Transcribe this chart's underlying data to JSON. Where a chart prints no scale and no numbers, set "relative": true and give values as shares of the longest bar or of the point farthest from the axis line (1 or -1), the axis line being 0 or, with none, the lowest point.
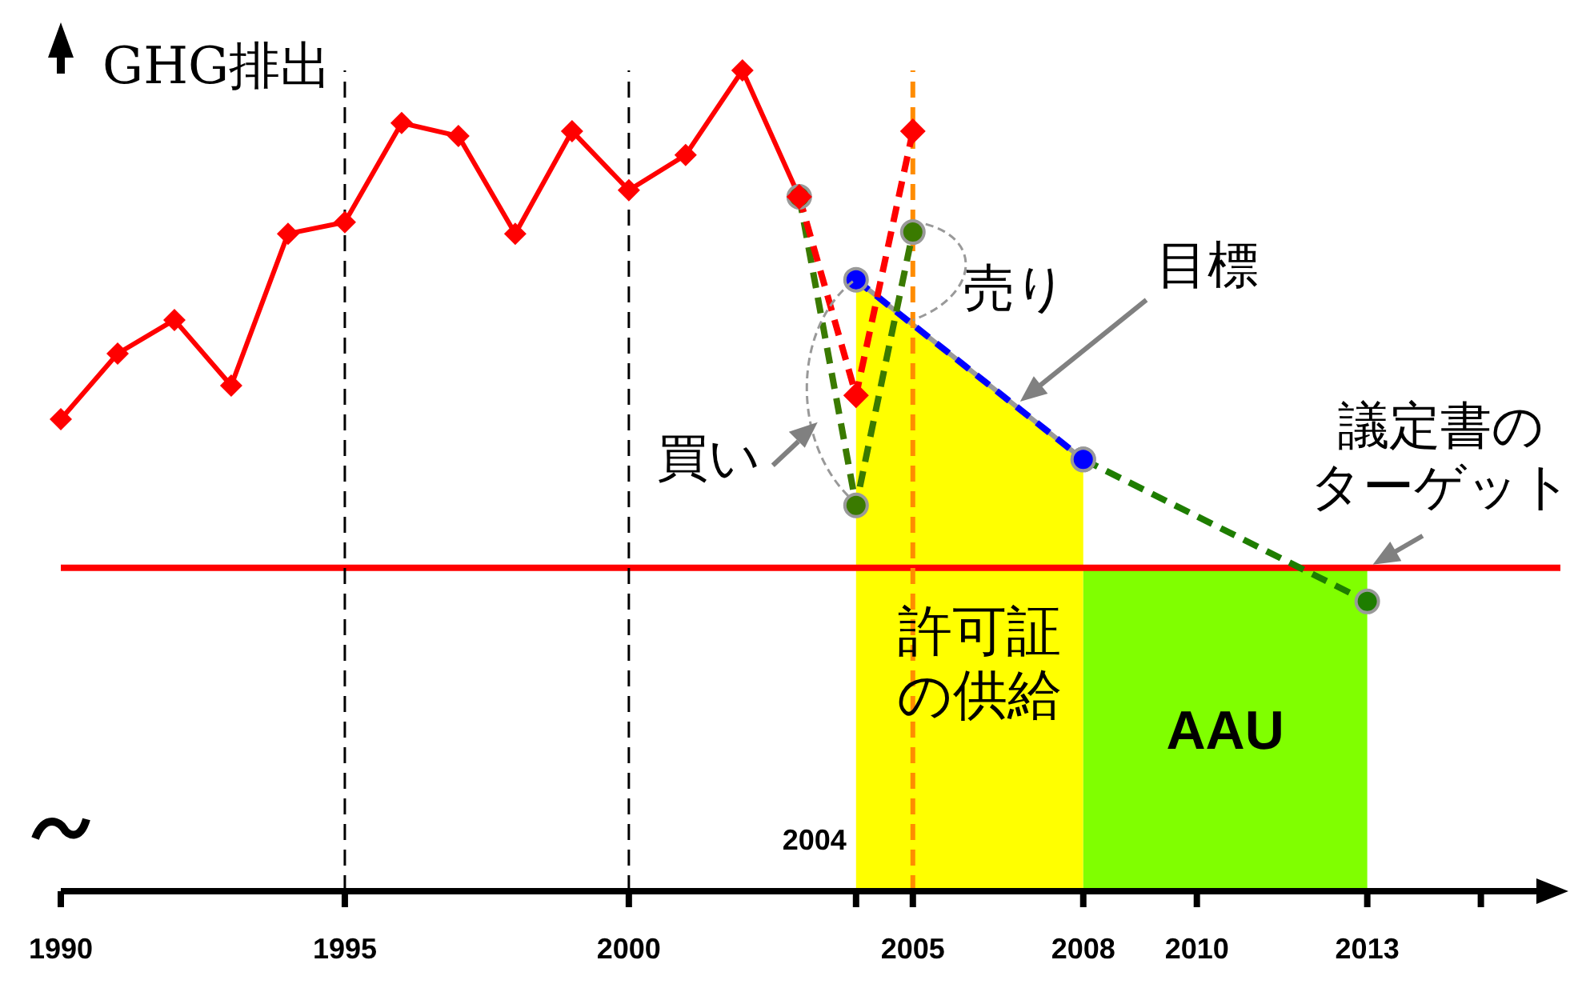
{
  "chart_data": {
    "type": "line",
    "relative": true,
    "ylabel": "GHG排出",
    "xlim": [
      1990,
      2016.4
    ],
    "xticks": [
      1990,
      1995,
      2000,
      {
        "value": 2004,
        "label": null
      },
      2005,
      2008,
      2010,
      2013,
      {
        "value": 2015,
        "label": null
      }
    ],
    "series": [
      {
        "color": "#ff0000",
        "marker": "diamond",
        "x": [
          1990,
          1991,
          1992,
          1993,
          1994,
          1995,
          1996,
          1997,
          1998,
          1999,
          2000,
          2001,
          2002,
          2003
        ],
        "values": [
          0.575,
          0.655,
          0.696,
          0.616,
          0.801,
          0.815,
          0.936,
          0.92,
          0.801,
          0.926,
          0.854,
          0.897,
          1,
          0.846
        ]
      },
      {
        "color": "#ff0000",
        "marker": "diamond",
        "line_style": "dashed",
        "x": [
          2003,
          2004,
          2005
        ],
        "values": [
          0.846,
          0.604,
          0.926
        ]
      },
      {
        "type": "area",
        "name": "許可証の供給",
        "color": "#ffff00",
        "x": [
          2004,
          2008
        ],
        "values": [
          0.745,
          0.526
        ]
      },
      {
        "type": "area",
        "name": "AAU",
        "color": "#80ff00",
        "x": [
          2008,
          2013
        ],
        "values": [
          0.394,
          0.394
        ]
      },
      {
        "color": "#3a7a00",
        "marker": "circle",
        "line_style": "dashed",
        "x": [
          2003,
          2004,
          2005
        ],
        "values": [
          0.846,
          0.47,
          0.803
        ]
      },
      {
        "color": "#0000ff",
        "marker": "circle",
        "line_style": "dashed",
        "x": [
          2004,
          2008
        ],
        "values": [
          0.745,
          0.526
        ]
      },
      {
        "color": "#1e7d00",
        "marker": "circle",
        "line_style": "dashed",
        "x": [
          2008,
          2013
        ],
        "values": [
          0.526,
          0.353
        ]
      }
    ],
    "ref_lines": [
      {
        "axis": "y",
        "value": 0.394,
        "color": "#ff0000",
        "line_style": "solid"
      },
      {
        "axis": "x",
        "value": 1995,
        "color": "#000000",
        "line_style": "dashed"
      },
      {
        "axis": "x",
        "value": 2000,
        "color": "#000000",
        "line_style": "dashed"
      },
      {
        "axis": "x",
        "value": 2005,
        "color": "#ff8c00",
        "line_style": "dashed"
      }
    ],
    "annotations": [
      "目標",
      {
        "text": "売り",
        "x": 2005,
        "y": 0.803
      },
      {
        "text": "買い",
        "x": 2004,
        "y": 0.47
      },
      {
        "text": "議定書のターゲット",
        "x": 2013,
        "y": 0.394
      },
      {
        "text": "2004",
        "x": 2004,
        "y": 0
      }
    ]
  }
}
